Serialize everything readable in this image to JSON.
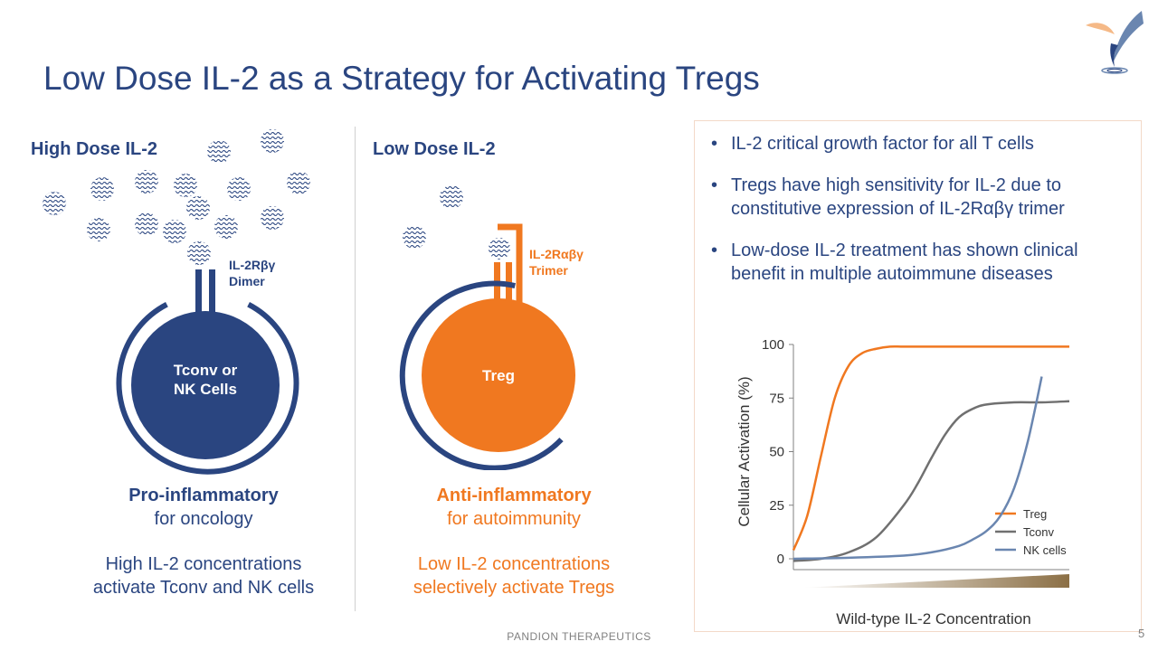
{
  "title": "Low Dose IL-2 as a Strategy for Activating Tregs",
  "colors": {
    "navy": "#2A4580",
    "orange": "#F07820",
    "gray": "#707070",
    "blue": "#6A86B0"
  },
  "left_panel": {
    "heading": "High Dose IL-2",
    "receptor_label": "IL-2Rβγ\nDimer",
    "cell_label": "Tconv or\nNK Cells",
    "caption_bold": "Pro-inflammatory",
    "caption_sub": "for oncology",
    "description": "High IL-2 concentrations\nactivate Tconv and NK cells"
  },
  "middle_panel": {
    "heading": "Low Dose IL-2",
    "receptor_label": "IL-2Rαβγ\nTrimer",
    "cell_label": "Treg",
    "caption_bold": "Anti-inflammatory",
    "caption_sub": "for autoimmunity",
    "description": "Low IL-2 concentrations\nselectively activate Tregs"
  },
  "bullets": [
    "IL-2 critical growth factor for all T cells",
    "Tregs have high sensitivity for IL-2 due to constitutive expression of IL-2Rαβγ trimer",
    "Low-dose IL-2 treatment has shown clinical benefit in multiple autoimmune diseases"
  ],
  "chart_data": {
    "type": "line",
    "title": "",
    "xlabel": "Wild-type IL-2 Concentration",
    "ylabel": "Cellular Activation (%)",
    "ylim": [
      0,
      100
    ],
    "xlim": [
      0,
      10
    ],
    "yticks": [
      "0",
      "25",
      "50",
      "75",
      "100"
    ],
    "grid": false,
    "legend_position": "bottom-right",
    "series": [
      {
        "name": "Treg",
        "color": "#F07820",
        "x": [
          0,
          0.5,
          1,
          1.5,
          2,
          2.5,
          3,
          3.5,
          4,
          5,
          6,
          8,
          10
        ],
        "y": [
          4,
          20,
          48,
          75,
          90,
          96,
          98,
          99,
          99,
          99,
          99,
          99,
          99
        ]
      },
      {
        "name": "Tconv",
        "color": "#707070",
        "x": [
          0,
          1,
          2,
          3,
          4,
          4.5,
          5,
          5.5,
          6,
          6.5,
          7,
          8,
          9,
          10
        ],
        "y": [
          -1,
          0,
          3,
          10,
          25,
          35,
          47,
          58,
          66,
          70,
          72,
          73,
          73,
          73.5
        ]
      },
      {
        "name": "NK cells",
        "color": "#6A86B0",
        "x": [
          0,
          2,
          4,
          5,
          6,
          6.5,
          7,
          7.5,
          8,
          8.5,
          9
        ],
        "y": [
          0,
          0.5,
          1.5,
          3,
          6,
          9,
          13,
          20,
          33,
          55,
          85
        ]
      }
    ]
  },
  "footer": "PANDION THERAPEUTICS",
  "page_number": "5"
}
